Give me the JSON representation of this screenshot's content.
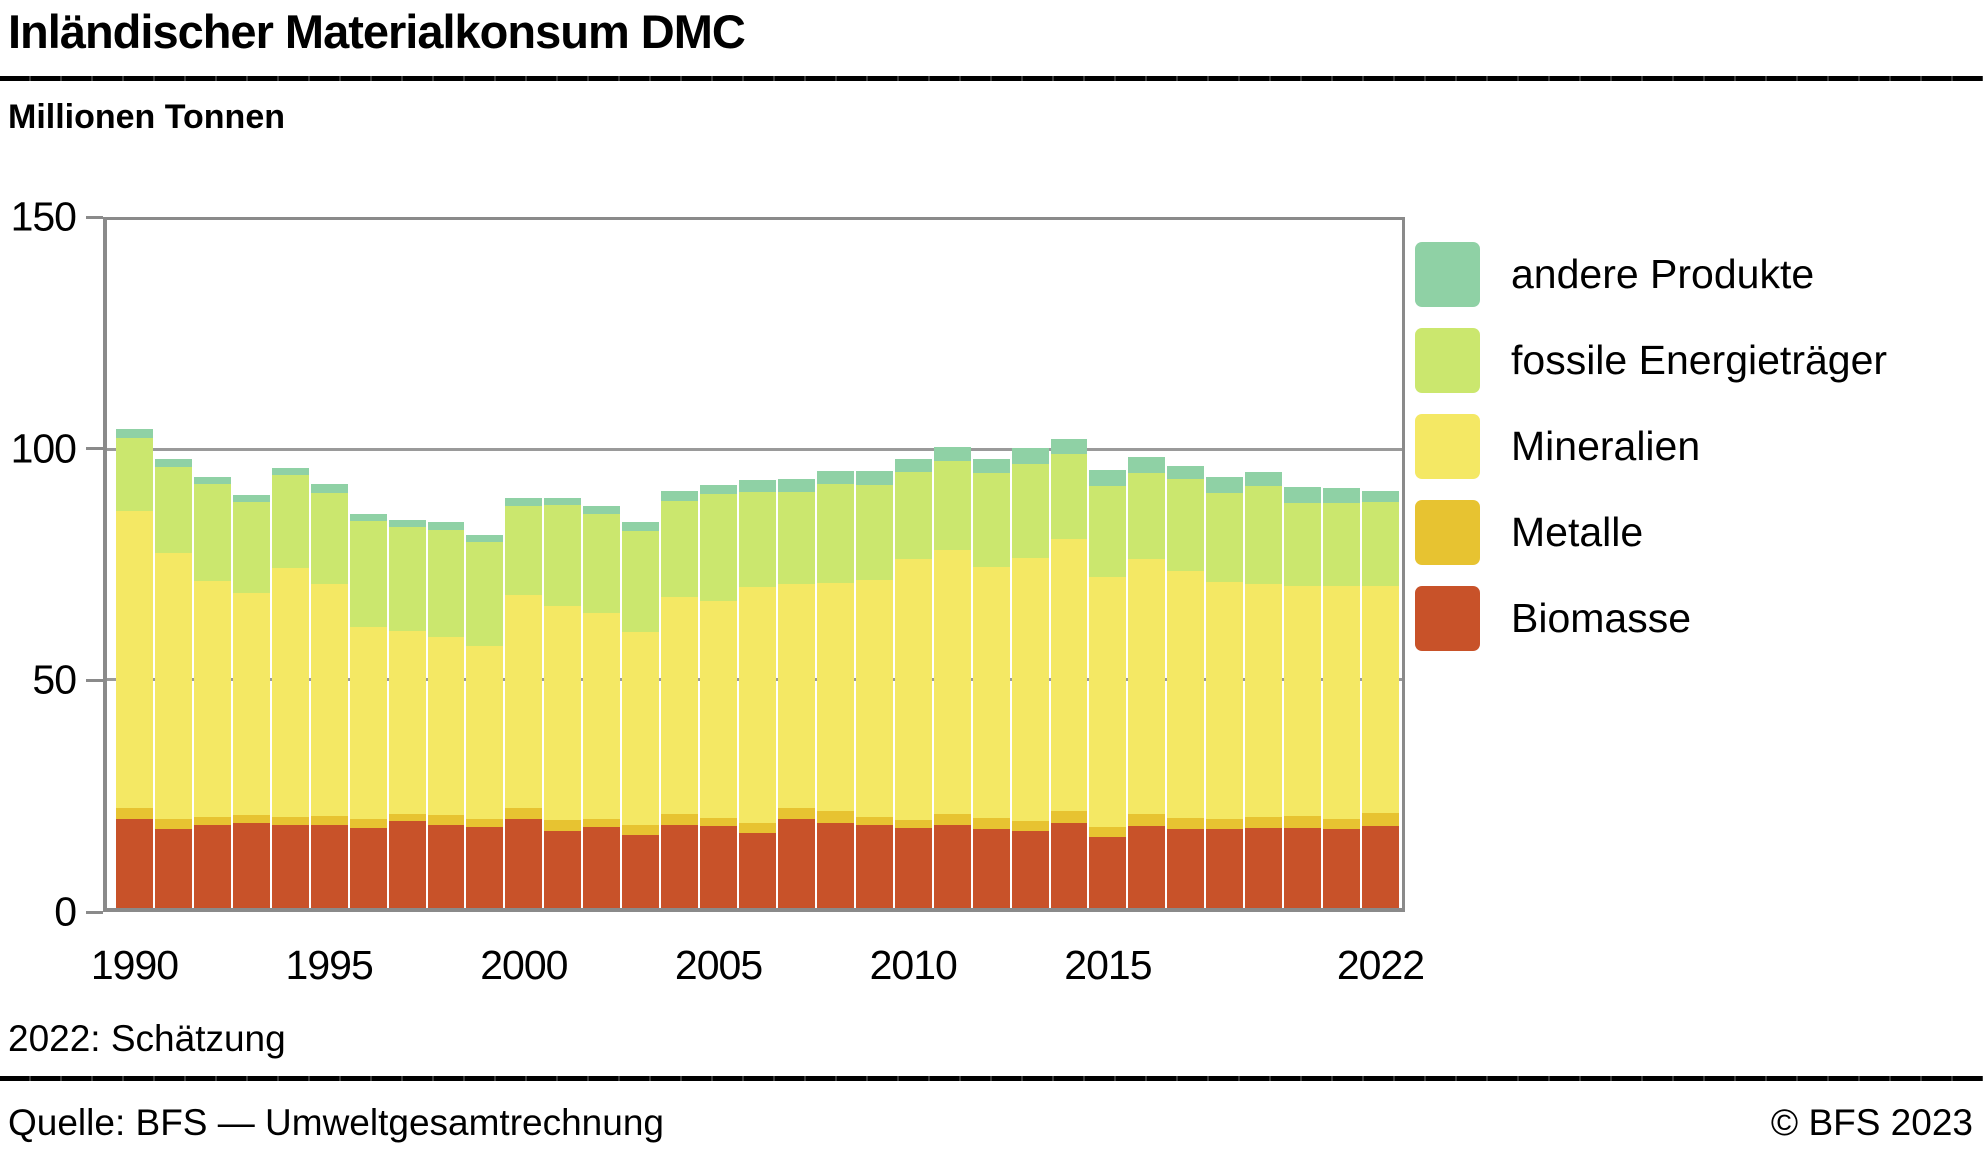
{
  "header": {
    "title": "Inländischer Materialkonsum DMC",
    "unit_label": "Millionen Tonnen"
  },
  "footer": {
    "footnote": "2022: Schätzung",
    "source": "Quelle: BFS — Umweltgesamtrechnung",
    "copyright": "© BFS 2023"
  },
  "colors": {
    "andere_produkte": "#8fd1a5",
    "fossile_energietraeger": "#cbe76e",
    "mineralien": "#f4e864",
    "metalle": "#e7c331",
    "biomasse": "#c85229",
    "grid": "#9a9a9a",
    "axis": "#8a8a8a"
  },
  "legend": [
    {
      "label": "andere Produkte",
      "color": "#8fd1a5"
    },
    {
      "label": "fossile Energieträger",
      "color": "#cbe76e"
    },
    {
      "label": "Mineralien",
      "color": "#f4e864"
    },
    {
      "label": "Metalle",
      "color": "#e7c331"
    },
    {
      "label": "Biomasse",
      "color": "#c85229"
    }
  ],
  "axes": {
    "y_ticks": [
      {
        "label": "150",
        "value": 150
      },
      {
        "label": "100",
        "value": 100
      },
      {
        "label": "50",
        "value": 50
      },
      {
        "label": "0",
        "value": 0
      }
    ],
    "x_ticks": [
      {
        "label": "1990",
        "year": 1990
      },
      {
        "label": "1995",
        "year": 1995
      },
      {
        "label": "2000",
        "year": 2000
      },
      {
        "label": "2005",
        "year": 2005
      },
      {
        "label": "2010",
        "year": 2010
      },
      {
        "label": "2015",
        "year": 2015
      },
      {
        "label": "2022",
        "year": 2022
      }
    ]
  },
  "chart_data": {
    "type": "bar",
    "stacked": true,
    "title": "Inländischer Materialkonsum DMC",
    "ylabel": "Millionen Tonnen",
    "ylim": [
      0,
      150
    ],
    "grid": "horizontal gridlines at 50 and 100",
    "legend_position": "right",
    "categories": [
      1990,
      1991,
      1992,
      1993,
      1994,
      1995,
      1996,
      1997,
      1998,
      1999,
      2000,
      2001,
      2002,
      2003,
      2004,
      2005,
      2006,
      2007,
      2008,
      2009,
      2010,
      2011,
      2012,
      2013,
      2014,
      2015,
      2016,
      2017,
      2018,
      2019,
      2020,
      2021,
      2022
    ],
    "series": [
      {
        "name": "Biomasse",
        "color": "#c85229",
        "values": [
          19.5,
          17.3,
          18.2,
          18.6,
          18.0,
          18.0,
          17.5,
          18.9,
          18.1,
          17.7,
          19.5,
          16.8,
          17.7,
          15.9,
          18.2,
          17.8,
          16.3,
          19.3,
          18.6,
          18.0,
          17.4,
          18.2,
          17.2,
          16.8,
          18.6,
          15.5,
          17.9,
          17.3,
          17.2,
          17.5,
          17.4,
          17.2,
          17.9
        ]
      },
      {
        "name": "Metalle",
        "color": "#e7c331",
        "values": [
          2.4,
          2.0,
          1.7,
          1.7,
          1.9,
          2.1,
          2.0,
          1.6,
          2.1,
          1.8,
          2.3,
          2.5,
          1.8,
          2.1,
          2.2,
          1.8,
          2.3,
          2.4,
          2.5,
          1.9,
          1.9,
          2.4,
          2.5,
          2.2,
          2.6,
          2.2,
          2.5,
          2.4,
          2.1,
          2.4,
          2.7,
          2.1,
          2.9
        ]
      },
      {
        "name": "Mineralien",
        "color": "#f4e864",
        "values": [
          64.6,
          58.2,
          51.3,
          48.3,
          54.3,
          50.5,
          41.8,
          39.8,
          38.9,
          37.7,
          46.4,
          46.5,
          44.9,
          42.2,
          47.4,
          47.4,
          51.4,
          49.0,
          49.7,
          51.6,
          56.7,
          57.5,
          54.7,
          57.3,
          59.2,
          54.4,
          55.6,
          53.8,
          51.7,
          50.8,
          50.1,
          50.9,
          49.4
        ]
      },
      {
        "name": "fossile Energieträger",
        "color": "#cbe76e",
        "values": [
          16.0,
          18.6,
          21.3,
          19.9,
          20.3,
          19.9,
          23.1,
          22.7,
          23.3,
          22.6,
          19.5,
          22.1,
          21.6,
          22.0,
          21.0,
          23.2,
          20.8,
          20.1,
          21.6,
          20.8,
          19.0,
          19.3,
          20.5,
          20.6,
          18.7,
          20.0,
          18.9,
          20.1,
          19.5,
          21.3,
          18.2,
          18.2,
          18.3
        ]
      },
      {
        "name": "andere Produkte",
        "color": "#8fd1a5",
        "values": [
          2.0,
          1.7,
          1.5,
          1.5,
          1.5,
          1.9,
          1.5,
          1.5,
          1.8,
          1.5,
          1.7,
          1.6,
          1.7,
          2.0,
          2.1,
          2.1,
          2.5,
          2.7,
          2.9,
          3.0,
          3.0,
          3.2,
          3.1,
          3.5,
          3.2,
          3.4,
          3.4,
          2.7,
          3.5,
          3.1,
          3.3,
          3.2,
          2.4
        ]
      }
    ]
  }
}
